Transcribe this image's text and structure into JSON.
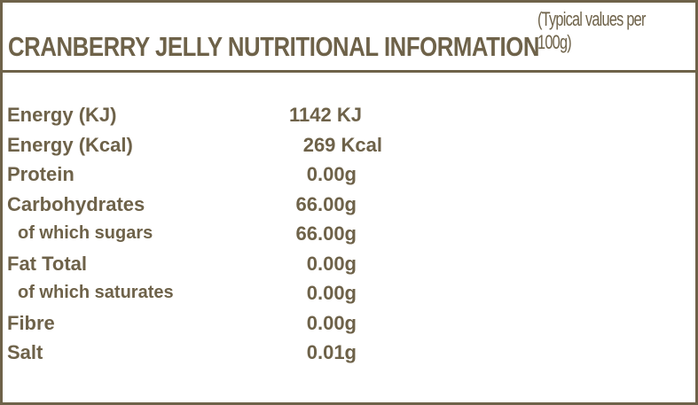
{
  "header": {
    "title": "CRANBERRY JELLY NUTRITIONAL INFORMATION",
    "subtitle": "(Typical values per 100g)"
  },
  "rows": [
    {
      "label": "Energy (KJ)",
      "value": "1142 KJ"
    },
    {
      "label": "Energy (Kcal)",
      "value": "269 Kcal"
    },
    {
      "label": "Protein",
      "value": "0.00g"
    },
    {
      "label": "Carbohydrates",
      "value": "66.00g"
    },
    {
      "label": "of which sugars",
      "value": "66.00g"
    },
    {
      "label": "Fat Total",
      "value": "0.00g"
    },
    {
      "label": "of which saturates",
      "value": "0.00g"
    },
    {
      "label": "Fibre",
      "value": "0.00g"
    },
    {
      "label": "Salt",
      "value": "0.01g"
    }
  ],
  "colors": {
    "text": "#6e6249",
    "border": "#6e6249",
    "background": "#ffffff"
  }
}
